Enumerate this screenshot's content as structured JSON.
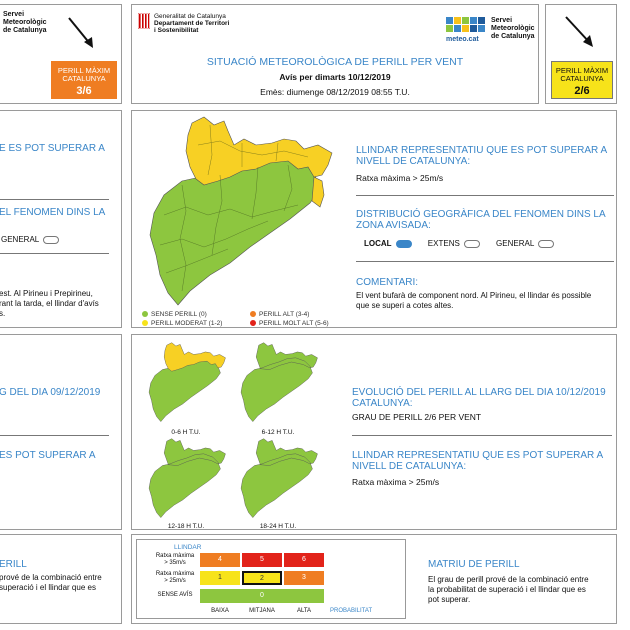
{
  "header": {
    "gencat_line1": "Generalitat de Catalunya",
    "gencat_line2": "Departament de Territori",
    "gencat_line3": "i Sostenibilitat",
    "smc_label": "meteo.cat",
    "smc_line1": "Servei",
    "smc_line2": "Meteorològic",
    "smc_line3": "de Catalunya",
    "title": "SITUACIÓ METEOROLÒGICA DE PERILL PER VENT",
    "subtitle": "Avís per dimarts 10/12/2019",
    "issued": "Emès: diumenge 08/12/2019 08:55 T.U."
  },
  "left_panel": {
    "smc_line1": "Servei",
    "smc_line2": "Meteorològic",
    "smc_line3": "de Catalunya",
    "badge_line1": "PERILL MÀXIM",
    "badge_line2": "CATALUNYA",
    "badge_value": "3/6",
    "badge_color": "#ef7d22",
    "frag1": "E ES POT SUPERAR A",
    "frag2": "EL FENOMEN DINS LA",
    "frag3": "GENERAL",
    "frag4a": "est. Al Pirineu i Prepirineu,",
    "frag4b": "rant la tarda, el llindar d'avís",
    "frag4c": "s.",
    "frag5": "G DEL DIA 09/12/2019",
    "frag6": "ES POT SUPERAR A",
    "frag7": "ERILL",
    "frag8a": "prové de la combinació entre",
    "frag8b": "superació i el llindar que es"
  },
  "right_badge": {
    "line1": "PERILL MÀXIM",
    "line2": "CATALUNYA",
    "value": "2/6",
    "color": "#f7e31a"
  },
  "threshold": {
    "heading1": "LLINDAR REPRESENTATIU QUE ES POT SUPERAR A",
    "heading2": "NIVELL DE CATALUNYA:",
    "value": "Ratxa màxima > 25m/s"
  },
  "distribution": {
    "heading1": "DISTRIBUCIÓ GEOGRÀFICA DEL FENOMEN DINS LA",
    "heading2": "ZONA AVISADA:",
    "local": "LOCAL",
    "extens": "EXTENS",
    "general": "GENERAL",
    "selected": "LOCAL"
  },
  "comment": {
    "heading": "COMENTARI:",
    "line1": "El vent bufarà de component nord. Al Pirineu, el llindar és possible",
    "line2": "que se superi a cotes altes."
  },
  "legend": {
    "items": [
      {
        "label": "SENSE PERILL (0)",
        "color": "#8dc63f"
      },
      {
        "label": "PERILL MODERAT (1-2)",
        "color": "#f7e31a"
      },
      {
        "label": "PERILL ALT (3-4)",
        "color": "#ef7d22"
      },
      {
        "label": "PERILL MOLT ALT (5-6)",
        "color": "#e2231a"
      }
    ]
  },
  "evolution": {
    "heading1": "EVOLUCIÓ DEL PERILL AL LLARG DEL DIA 10/12/2019",
    "heading2": "CATALUNYA:",
    "grade": "GRAU DE PERILL 2/6 PER VENT",
    "th_heading1": "LLINDAR REPRESENTATIU QUE ES POT SUPERAR A",
    "th_heading2": "NIVELL DE CATALUNYA:",
    "th_value": "Ratxa màxima > 25m/s",
    "periods": [
      "0-6 H T.U.",
      "6-12 H T.U.",
      "12-18 H T.U.",
      "18-24 H T.U."
    ]
  },
  "matrix": {
    "y_title": "LLINDAR",
    "row1_line1": "Ratxa màxima",
    "row1_line2": "> 35m/s",
    "row2_line1": "Ratxa màxima",
    "row2_line2": "> 25m/s",
    "row3": "SENSE AVÍS",
    "x_labels": [
      "BAIXA",
      "MITJANA",
      "ALTA"
    ],
    "x_title": "PROBABILITAT",
    "row1_values": [
      "4",
      "5",
      "6"
    ],
    "row2_values": [
      "1",
      "2",
      "3"
    ],
    "row3_value": "0",
    "colors": {
      "orange": "#ef7d22",
      "red": "#e2231a",
      "yellow": "#f7e31a",
      "green": "#8dc63f"
    },
    "heading": "MATRIU DE PERILL",
    "text1": "El grau de perill prové de la combinació entre",
    "text2": "la probabilitat de superació i el llindar que es",
    "text3": "pot superar."
  }
}
